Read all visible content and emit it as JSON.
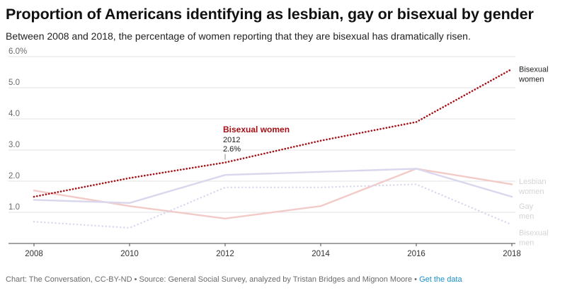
{
  "header": {
    "title": "Proportion of Americans identifying as lesbian, gay or bisexual by gender",
    "subtitle": "Between 2008 and 2018, the percentage of women reporting that they are bisexual has dramatically risen."
  },
  "footer": {
    "credit": "Chart: The Conversation, CC-BY-ND • Source: General Social Survey, analyzed by Tristan Bridges and Mignon Moore • ",
    "link_label": "Get the data"
  },
  "chart_data": {
    "type": "line",
    "x": [
      2008,
      2010,
      2012,
      2014,
      2016,
      2018
    ],
    "xlim": [
      2008,
      2018
    ],
    "ylim": [
      0,
      6
    ],
    "y_ticks": [
      "1.0",
      "2.0",
      "3.0",
      "4.0",
      "5.0",
      "6.0%"
    ],
    "grid": true,
    "series": [
      {
        "label_lines": [
          "Bisexual",
          "women"
        ],
        "values": [
          1.5,
          2.1,
          2.6,
          3.3,
          3.9,
          5.6
        ],
        "color": "#a50f15",
        "style": "dotted",
        "emphasis": true
      },
      {
        "label_lines": [
          "Lesbian",
          "women"
        ],
        "values": [
          1.7,
          1.2,
          0.8,
          1.2,
          2.4,
          1.9
        ],
        "color": "#f2cbc8",
        "style": "solid",
        "emphasis": false
      },
      {
        "label_lines": [
          "Gay",
          "men"
        ],
        "values": [
          1.4,
          1.3,
          2.2,
          2.3,
          2.4,
          1.5
        ],
        "color": "#d9d7ee",
        "style": "solid",
        "emphasis": false
      },
      {
        "label_lines": [
          "Bisexual",
          "men"
        ],
        "values": [
          0.7,
          0.5,
          1.8,
          1.8,
          1.9,
          0.6
        ],
        "color": "#d9d7ee",
        "style": "dotted",
        "emphasis": false
      }
    ],
    "annotation": {
      "series": "Bisexual women",
      "x": 2012,
      "title": "Bisexual women",
      "year": "2012",
      "value": "2.6%"
    }
  }
}
